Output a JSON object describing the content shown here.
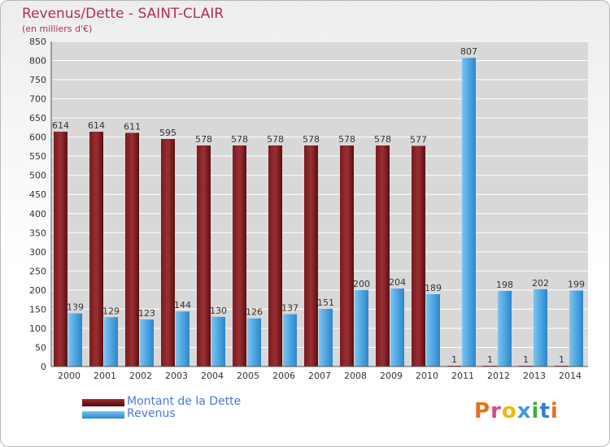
{
  "chart_data": {
    "type": "bar",
    "title": "Revenus/Dette - SAINT-CLAIR",
    "subtitle": "(en milliers d'€)",
    "categories": [
      "2000",
      "2001",
      "2002",
      "2003",
      "2004",
      "2005",
      "2006",
      "2007",
      "2008",
      "2009",
      "2010",
      "2011",
      "2012",
      "2013",
      "2014"
    ],
    "series": [
      {
        "name": "Montant de la Dette",
        "color": "#7a1a1e",
        "values": [
          614,
          614,
          611,
          595,
          578,
          578,
          578,
          578,
          578,
          578,
          577,
          1,
          1,
          1,
          1
        ]
      },
      {
        "name": "Revenus",
        "color": "#4ea6e2",
        "values": [
          139,
          129,
          123,
          144,
          130,
          126,
          137,
          151,
          200,
          204,
          189,
          807,
          198,
          202,
          199
        ]
      }
    ],
    "ylim": [
      0,
      850
    ],
    "ytick_step": 50,
    "grid": true,
    "legend_position": "bottom-left"
  },
  "logo": {
    "text": "Proxiti",
    "letter_colors": [
      "#e8701a",
      "#d04a8a",
      "#f0b800",
      "#3a9be0",
      "#3cb043",
      "#2f7fd0",
      "#e8701a"
    ]
  }
}
